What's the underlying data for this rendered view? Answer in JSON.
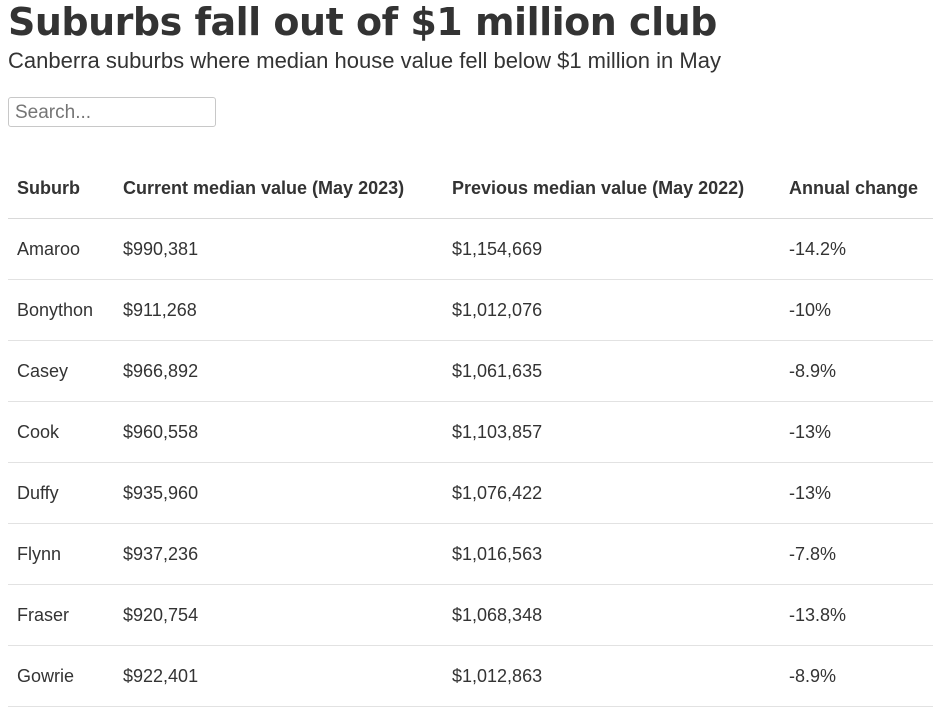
{
  "header": {
    "title": "Suburbs fall out of $1 million club",
    "subtitle": "Canberra suburbs where median house value fell below $1 million in May"
  },
  "search": {
    "placeholder": "Search..."
  },
  "table": {
    "columns": [
      "Suburb",
      "Current median value (May 2023)",
      "Previous median value (May 2022)",
      "Annual change"
    ],
    "rows": [
      [
        "Amaroo",
        "$990,381",
        "$1,154,669",
        "-14.2%"
      ],
      [
        "Bonython",
        "$911,268",
        "$1,012,076",
        "-10%"
      ],
      [
        "Casey",
        "$966,892",
        "$1,061,635",
        "-8.9%"
      ],
      [
        "Cook",
        "$960,558",
        "$1,103,857",
        "-13%"
      ],
      [
        "Duffy",
        "$935,960",
        "$1,076,422",
        "-13%"
      ],
      [
        "Flynn",
        "$937,236",
        "$1,016,563",
        "-7.8%"
      ],
      [
        "Fraser",
        "$920,754",
        "$1,068,348",
        "-13.8%"
      ],
      [
        "Gowrie",
        "$922,401",
        "$1,012,863",
        "-8.9%"
      ]
    ]
  }
}
